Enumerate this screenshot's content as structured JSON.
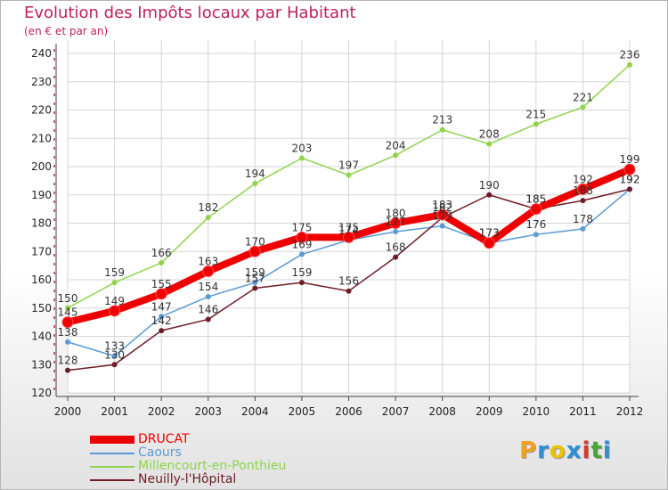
{
  "header": {
    "title": "Evolution des Impôts locaux par Habitant",
    "subtitle": "(en € et par an)"
  },
  "chart_data": {
    "type": "line",
    "title": "Evolution des Impôts locaux par Habitant",
    "subtitle": "(en € et par an)",
    "xlabel": "",
    "ylabel": "",
    "x": [
      "2000",
      "2001",
      "2002",
      "2003",
      "2004",
      "2005",
      "2006",
      "2007",
      "2008",
      "2009",
      "2010",
      "2011",
      "2012"
    ],
    "ylim": [
      120,
      240
    ],
    "yticks": [
      "120",
      "130",
      "140",
      "150",
      "160",
      "170",
      "180",
      "190",
      "200",
      "210",
      "220",
      "230",
      "240"
    ],
    "grid": true,
    "series": [
      {
        "name": "Millencourt-en-Ponthieu",
        "color": "#8fd44c",
        "values": [
          150,
          159,
          166,
          182,
          194,
          203,
          197,
          204,
          213,
          208,
          215,
          221,
          236
        ]
      },
      {
        "name": "Caours",
        "color": "#5b9bd5",
        "values": [
          138,
          133,
          147,
          154,
          159,
          169,
          174,
          177,
          179,
          173,
          176,
          178,
          192
        ]
      },
      {
        "name": "Neuilly-l'Hôpital",
        "color": "#6e1c26",
        "values": [
          128,
          130,
          142,
          146,
          157,
          159,
          156,
          168,
          182,
          190,
          185,
          188,
          192
        ]
      },
      {
        "name": "DRUCAT",
        "color": "#ee0000",
        "values": [
          145,
          149,
          155,
          163,
          170,
          175,
          175,
          180,
          183,
          173,
          185,
          192,
          199
        ]
      }
    ],
    "labels": [
      {
        "series": "Millencourt-en-Ponthieu",
        "values": [
          "150",
          "159",
          "166",
          "182",
          "194",
          "203",
          "197",
          "204",
          "213",
          "208",
          "215",
          "221",
          "236"
        ]
      },
      {
        "series": "Caours",
        "values": [
          "138",
          "133",
          "147",
          "154",
          "159",
          "169",
          "174",
          "177",
          "179",
          "173",
          "176",
          "178",
          "192"
        ]
      },
      {
        "series": "Neuilly-l'Hôpital",
        "values": [
          "128",
          "130",
          "142",
          "146",
          "157",
          "159",
          "156",
          "168",
          "182",
          "190",
          "185",
          "188",
          "192"
        ]
      },
      {
        "series": "DRUCAT",
        "values": [
          "145",
          "149",
          "155",
          "163",
          "170",
          "175",
          "175",
          "180",
          "183",
          "173",
          "185",
          "192",
          "199"
        ]
      }
    ]
  },
  "legend": {
    "items": [
      {
        "label": "DRUCAT",
        "color": "#ee0000"
      },
      {
        "label": "Caours",
        "color": "#5b9bd5"
      },
      {
        "label": "Millencourt-en-Ponthieu",
        "color": "#8fd44c"
      },
      {
        "label": "Neuilly-l'Hôpital",
        "color": "#6e1c26"
      }
    ]
  },
  "logo": {
    "letters": [
      "P",
      "r",
      "o",
      "x",
      "i",
      "t",
      "i"
    ],
    "colors": [
      "#f3a01b",
      "#2f8fd6",
      "#e9c200",
      "#2f8fd6",
      "#d63a2f",
      "#4aa534",
      "#2f8fd6"
    ]
  }
}
